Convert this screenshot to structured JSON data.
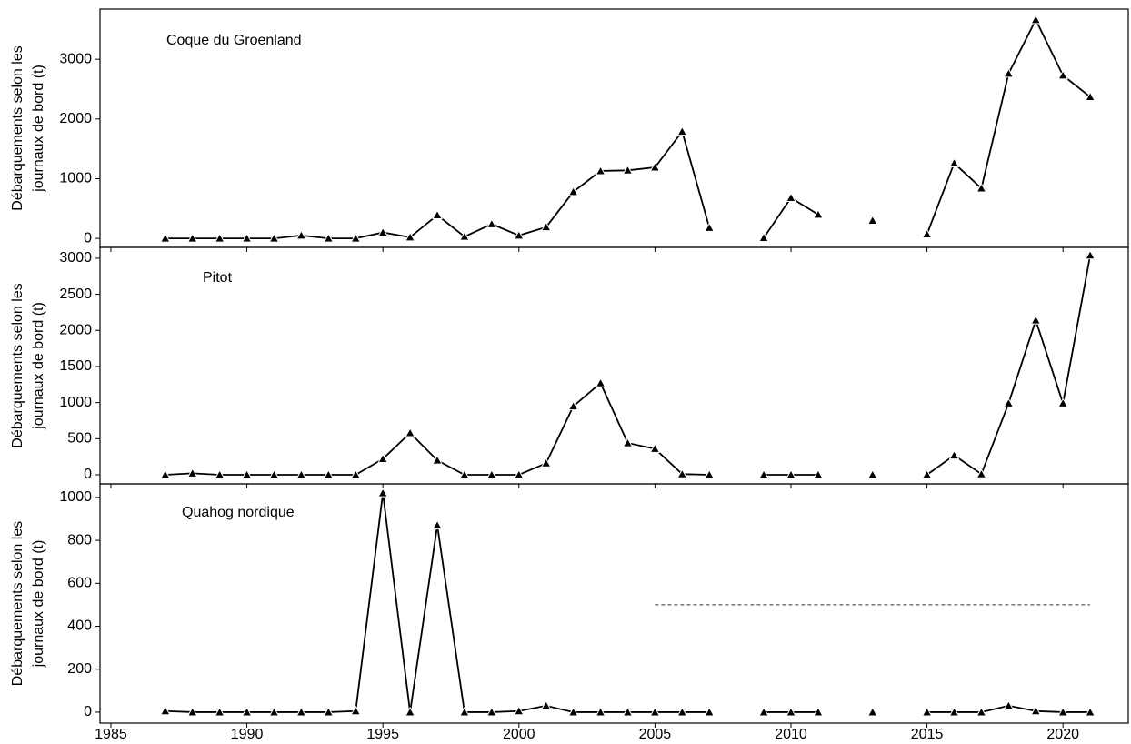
{
  "chart_data": [
    {
      "type": "line",
      "title": "Coque du Groenland",
      "y_label": [
        "Débarquements selon les",
        "journaux de bord (t)"
      ],
      "x": [
        1987,
        1988,
        1989,
        1990,
        1991,
        1992,
        1993,
        1994,
        1995,
        1996,
        1997,
        1998,
        1999,
        2000,
        2001,
        2002,
        2003,
        2004,
        2005,
        2006,
        2007,
        2008,
        2009,
        2010,
        2011,
        2012,
        2013,
        2014,
        2015,
        2016,
        2017,
        2018,
        2019,
        2020,
        2021
      ],
      "series": [
        {
          "color": "#000000",
          "values": [
            0,
            0,
            0,
            0,
            0,
            50,
            0,
            0,
            100,
            20,
            390,
            30,
            240,
            50,
            190,
            780,
            1130,
            1140,
            1190,
            1790,
            180,
            null,
            10,
            680,
            400,
            null,
            300,
            null,
            70,
            1260,
            840,
            2760,
            3660,
            2730,
            2370
          ]
        }
      ],
      "xlim": [
        1984.6,
        2022.4
      ],
      "xticks": [
        1985,
        1990,
        1995,
        2000,
        2005,
        2010,
        2015,
        2020
      ],
      "ylim": [
        -150,
        3840
      ],
      "yticks": [
        0,
        1000,
        2000,
        3000
      ]
    },
    {
      "type": "line",
      "title": "Pitot",
      "y_label": [
        "Débarquements selon les",
        "journaux de bord (t)"
      ],
      "x": [
        1987,
        1988,
        1989,
        1990,
        1991,
        1992,
        1993,
        1994,
        1995,
        1996,
        1997,
        1998,
        1999,
        2000,
        2001,
        2002,
        2003,
        2004,
        2005,
        2006,
        2007,
        2008,
        2009,
        2010,
        2011,
        2012,
        2013,
        2014,
        2015,
        2016,
        2017,
        2018,
        2019,
        2020,
        2021
      ],
      "series": [
        {
          "color": "#000000",
          "values": [
            0,
            20,
            0,
            0,
            0,
            0,
            0,
            0,
            220,
            580,
            200,
            0,
            0,
            0,
            160,
            950,
            1270,
            440,
            360,
            10,
            0,
            null,
            0,
            0,
            0,
            null,
            0,
            null,
            0,
            270,
            10,
            990,
            2140,
            990,
            3040
          ]
        }
      ],
      "xlim": [
        1984.6,
        2022.4
      ],
      "xticks": [
        1985,
        1990,
        1995,
        2000,
        2005,
        2010,
        2015,
        2020
      ],
      "ylim": [
        -126,
        3150
      ],
      "yticks": [
        0,
        500,
        1000,
        1500,
        2000,
        2500,
        3000
      ]
    },
    {
      "type": "line",
      "title": "Quahog nordique",
      "y_label": [
        "Débarquements selon les",
        "journaux de bord (t)"
      ],
      "x": [
        1987,
        1988,
        1989,
        1990,
        1991,
        1992,
        1993,
        1994,
        1995,
        1996,
        1997,
        1998,
        1999,
        2000,
        2001,
        2002,
        2003,
        2004,
        2005,
        2006,
        2007,
        2008,
        2009,
        2010,
        2011,
        2012,
        2013,
        2014,
        2015,
        2016,
        2017,
        2018,
        2019,
        2020,
        2021
      ],
      "series": [
        {
          "color": "#000000",
          "values": [
            5,
            0,
            0,
            0,
            0,
            0,
            0,
            5,
            1020,
            0,
            870,
            0,
            0,
            5,
            30,
            0,
            0,
            0,
            0,
            0,
            0,
            null,
            0,
            0,
            0,
            null,
            0,
            null,
            0,
            0,
            0,
            30,
            5,
            0,
            0
          ]
        }
      ],
      "reference_line": {
        "x": [
          2005,
          2021
        ],
        "y": 500
      },
      "xlim": [
        1984.6,
        2022.4
      ],
      "xticks": [
        1985,
        1990,
        1995,
        2000,
        2005,
        2010,
        2015,
        2020
      ],
      "ylim": [
        -51,
        1063
      ],
      "yticks": [
        0,
        200,
        400,
        600,
        800,
        1000
      ]
    }
  ]
}
